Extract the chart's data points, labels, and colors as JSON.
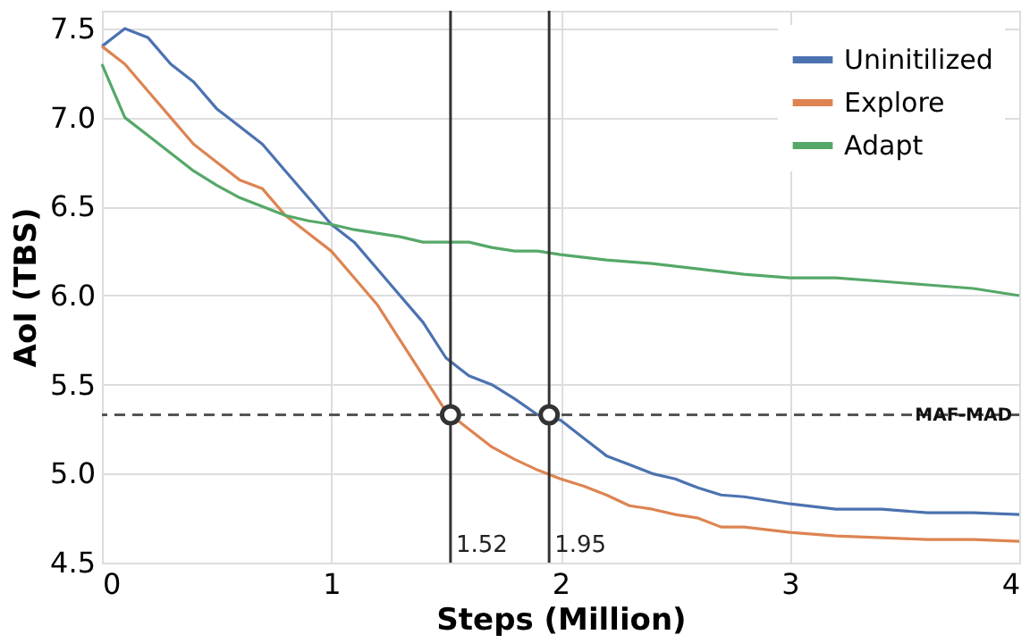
{
  "chart_data": {
    "type": "line",
    "xlabel": "Steps (Million)",
    "ylabel": "AoI (TBS)",
    "xlim": [
      0,
      4
    ],
    "xticks": [
      0,
      1,
      2,
      3,
      4
    ],
    "ylim": [
      4.5,
      7.6
    ],
    "yticks": [
      4.5,
      {
        "value": 5,
        "label": "5.0"
      },
      5.5,
      {
        "value": 6,
        "label": "6.0"
      },
      6.5,
      {
        "value": 7,
        "label": "7.0"
      },
      7.5
    ],
    "grid": true,
    "legend": "top right",
    "line_style": "solid",
    "marker": "none",
    "series": [
      {
        "name": "Uninitilized",
        "color": "#4c72b0",
        "x": [
          0,
          0.1,
          0.2,
          0.3,
          0.4,
          0.5,
          0.6,
          0.7,
          0.8,
          0.9,
          1.0,
          1.1,
          1.2,
          1.3,
          1.4,
          1.5,
          1.6,
          1.7,
          1.8,
          1.9,
          2.0,
          2.1,
          2.2,
          2.3,
          2.4,
          2.5,
          2.6,
          2.7,
          2.8,
          2.9,
          3.0,
          3.2,
          3.4,
          3.6,
          3.8,
          4.0
        ],
        "values": [
          7.4,
          7.5,
          7.45,
          7.3,
          7.2,
          7.05,
          6.95,
          6.85,
          6.7,
          6.55,
          6.4,
          6.3,
          6.15,
          6.0,
          5.85,
          5.65,
          5.55,
          5.5,
          5.42,
          5.33,
          5.3,
          5.2,
          5.1,
          5.05,
          5.0,
          4.97,
          4.92,
          4.88,
          4.87,
          4.85,
          4.83,
          4.8,
          4.8,
          4.78,
          4.78,
          4.77
        ]
      },
      {
        "name": "Explore",
        "color": "#dd8452",
        "x": [
          0,
          0.1,
          0.2,
          0.3,
          0.4,
          0.5,
          0.6,
          0.7,
          0.8,
          0.9,
          1.0,
          1.1,
          1.2,
          1.3,
          1.4,
          1.5,
          1.6,
          1.7,
          1.8,
          1.9,
          2.0,
          2.1,
          2.2,
          2.3,
          2.4,
          2.5,
          2.6,
          2.7,
          2.8,
          3.0,
          3.2,
          3.4,
          3.6,
          3.8,
          4.0
        ],
        "values": [
          7.4,
          7.3,
          7.15,
          7.0,
          6.85,
          6.75,
          6.65,
          6.6,
          6.45,
          6.35,
          6.25,
          6.1,
          5.95,
          5.75,
          5.55,
          5.35,
          5.25,
          5.15,
          5.08,
          5.02,
          4.97,
          4.93,
          4.88,
          4.82,
          4.8,
          4.77,
          4.75,
          4.7,
          4.7,
          4.67,
          4.65,
          4.64,
          4.63,
          4.63,
          4.62
        ]
      },
      {
        "name": "Adapt",
        "color": "#55a868",
        "x": [
          0,
          0.1,
          0.2,
          0.3,
          0.4,
          0.5,
          0.6,
          0.7,
          0.8,
          0.9,
          1.0,
          1.1,
          1.2,
          1.3,
          1.4,
          1.5,
          1.6,
          1.7,
          1.8,
          1.9,
          2.0,
          2.2,
          2.4,
          2.6,
          2.8,
          3.0,
          3.2,
          3.4,
          3.6,
          3.8,
          4.0
        ],
        "values": [
          7.3,
          7.0,
          6.9,
          6.8,
          6.7,
          6.62,
          6.55,
          6.5,
          6.45,
          6.42,
          6.4,
          6.37,
          6.35,
          6.33,
          6.3,
          6.3,
          6.3,
          6.27,
          6.25,
          6.25,
          6.23,
          6.2,
          6.18,
          6.15,
          6.12,
          6.1,
          6.1,
          6.08,
          6.06,
          6.04,
          6.0
        ]
      },
      {
        "type": "scatter",
        "color": "#333333",
        "marker": "circle",
        "x": [
          1.52,
          1.95
        ],
        "values": [
          5.33,
          5.33
        ]
      }
    ],
    "ref_lines": [
      {
        "axis": "y",
        "value": 5.33,
        "label": "MAF-MAD",
        "line_style": "dashed",
        "color": "#555555"
      },
      {
        "axis": "x",
        "value": 1.52,
        "label": "1.52",
        "line_style": "solid",
        "color": "#333333"
      },
      {
        "axis": "x",
        "value": 1.95,
        "label": "1.95",
        "line_style": "solid",
        "color": "#333333"
      }
    ]
  }
}
